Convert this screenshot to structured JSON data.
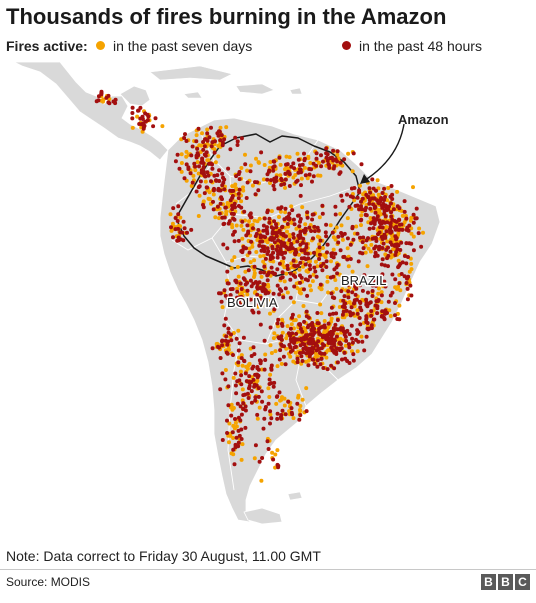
{
  "title": "Thousands of fires burning in the Amazon",
  "legend": {
    "label": "Fires active:",
    "items": [
      {
        "text": "in the past seven days",
        "color": "#f5a300"
      },
      {
        "text": "in the past 48 hours",
        "color": "#a30f0f"
      }
    ]
  },
  "map": {
    "land_color": "#d9d9d9",
    "border_color": "#ffffff",
    "amazon_outline_color": "#1a1a1a",
    "labels": {
      "amazon": "Amazon",
      "brazil": "BRAZIL",
      "bolivia": "BOLIVIA"
    }
  },
  "note": "Note: Data correct to Friday 30 August, 11.00 GMT",
  "source": "Source: MODIS",
  "logo": {
    "letters": [
      "B",
      "B",
      "C"
    ],
    "color": "#5a5a5a"
  }
}
